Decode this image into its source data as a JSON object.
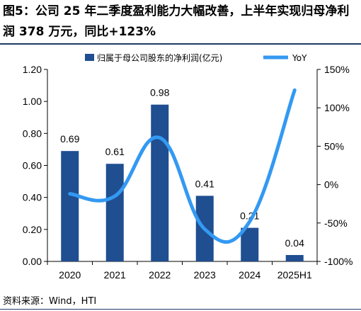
{
  "title": "图5：公司 25 年二季度盈利能力大幅改善，上半年实现归母净利润 378 万元，同比+123%",
  "source": "资料来源：Wind，HTI",
  "colors": {
    "bar": "#1f4e91",
    "line": "#3399f2",
    "rule": "#1f3b63"
  },
  "chart_data": {
    "type": "bar",
    "categories": [
      "2020",
      "2021",
      "2022",
      "2023",
      "2024",
      "2025H1"
    ],
    "series": [
      {
        "name": "归属于母公司股东的净利润(亿元)",
        "type": "bar",
        "axis": "left",
        "values": [
          0.69,
          0.61,
          0.98,
          0.41,
          0.21,
          0.04
        ],
        "labels": [
          "0.69",
          "0.61",
          "0.98",
          "0.41",
          "0.21",
          "0.04"
        ]
      },
      {
        "name": "YoY",
        "type": "line",
        "axis": "right",
        "smooth": true,
        "values": [
          -12,
          -15,
          61,
          -58,
          -48,
          123
        ]
      }
    ],
    "y_left": {
      "min": 0,
      "max": 1.2,
      "ticks": [
        "0.00",
        "0.20",
        "0.40",
        "0.60",
        "0.80",
        "1.00",
        "1.20"
      ]
    },
    "y_right": {
      "min": -100,
      "max": 150,
      "ticks": [
        "-100%",
        "-50%",
        "0%",
        "50%",
        "100%",
        "150%"
      ]
    },
    "legend_position": "top",
    "grid": false
  }
}
